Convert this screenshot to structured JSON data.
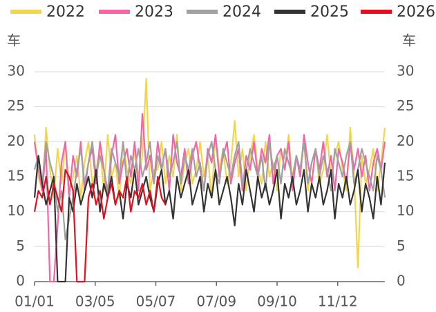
{
  "chart_data": {
    "type": "line",
    "y_label": "车",
    "y2_label": "车",
    "x": [
      0,
      4,
      8,
      12,
      16,
      20,
      24,
      28,
      32,
      36,
      40,
      44,
      48,
      52,
      56,
      60,
      64,
      68,
      72,
      76,
      80,
      84,
      88,
      92,
      96,
      100,
      104,
      108,
      112,
      116,
      120,
      124,
      128,
      132,
      136,
      140,
      144,
      148,
      152,
      156,
      160,
      164,
      168,
      172,
      176,
      180,
      184,
      188,
      192,
      196,
      200,
      204,
      208,
      212,
      216,
      220,
      224,
      228,
      232,
      236,
      240,
      244,
      248,
      252,
      256,
      260,
      264,
      268,
      272,
      276,
      280,
      284,
      288,
      292,
      296,
      300,
      304,
      308,
      312,
      316,
      320,
      324,
      328,
      332,
      336,
      340,
      344,
      348,
      352,
      356,
      360,
      364
    ],
    "xlim": [
      0,
      364
    ],
    "xticks": [
      {
        "value": 0,
        "label": "01/01"
      },
      {
        "value": 63,
        "label": "03/05"
      },
      {
        "value": 126,
        "label": "05/07"
      },
      {
        "value": 189,
        "label": "07/09"
      },
      {
        "value": 252,
        "label": "09/10"
      },
      {
        "value": 315,
        "label": "11/12"
      }
    ],
    "ylim": [
      0,
      30
    ],
    "yticks": [
      0,
      5,
      10,
      15,
      20,
      25,
      30
    ],
    "y2lim": [
      0,
      30
    ],
    "y2ticks": [
      0,
      5,
      10,
      15,
      20,
      25,
      30
    ],
    "grid": true,
    "legend": "top",
    "series": [
      {
        "name": "2022",
        "color": "#f2d54f",
        "values": [
          21,
          15,
          13,
          22,
          16,
          12,
          19,
          14,
          20,
          13,
          15,
          18,
          12,
          17,
          20,
          14,
          16,
          19,
          13,
          21,
          15,
          17,
          12,
          20,
          16,
          14,
          19,
          15,
          18,
          29,
          13,
          16,
          16,
          20,
          14,
          18,
          15,
          21,
          13,
          17,
          19,
          14,
          16,
          20,
          15,
          18,
          12,
          21,
          16,
          19,
          14,
          17,
          23,
          15,
          19,
          13,
          18,
          21,
          16,
          14,
          20,
          15,
          17,
          13,
          19,
          16,
          21,
          14,
          18,
          15,
          20,
          13,
          17,
          19,
          14,
          16,
          21,
          15,
          18,
          20,
          16,
          13,
          22,
          15,
          2,
          18,
          14,
          16,
          19,
          13,
          17,
          22
        ]
      },
      {
        "name": "2023",
        "color": "#f266a8",
        "values": [
          20,
          16,
          13,
          19,
          0,
          0,
          8,
          17,
          20,
          12,
          18,
          15,
          20,
          13,
          17,
          19,
          14,
          20,
          16,
          12,
          18,
          21,
          14,
          17,
          19,
          15,
          20,
          13,
          24,
          16,
          18,
          14,
          20,
          16,
          19,
          13,
          21,
          17,
          15,
          19,
          14,
          18,
          20,
          16,
          13,
          19,
          17,
          21,
          15,
          18,
          20,
          14,
          17,
          19,
          13,
          18,
          16,
          20,
          15,
          19,
          17,
          21,
          14,
          18,
          19,
          16,
          20,
          13,
          18,
          15,
          21,
          17,
          14,
          19,
          16,
          20,
          15,
          18,
          13,
          19,
          17,
          14,
          20,
          16,
          19,
          15,
          18,
          13,
          17,
          19,
          16,
          20
        ]
      },
      {
        "name": "2024",
        "color": "#a0a0a0",
        "values": [
          16,
          18,
          14,
          20,
          17,
          15,
          10,
          13,
          6,
          9,
          12,
          16,
          19,
          14,
          17,
          20,
          15,
          18,
          16,
          13,
          19,
          17,
          15,
          20,
          14,
          18,
          16,
          19,
          15,
          17,
          20,
          14,
          18,
          16,
          19,
          15,
          17,
          20,
          14,
          18,
          16,
          19,
          15,
          17,
          13,
          18,
          20,
          16,
          14,
          19,
          17,
          15,
          18,
          20,
          14,
          16,
          19,
          17,
          15,
          18,
          13,
          20,
          16,
          18,
          14,
          19,
          17,
          15,
          18,
          16,
          20,
          14,
          17,
          19,
          15,
          18,
          16,
          13,
          19,
          17,
          15,
          18,
          20,
          14,
          16,
          19,
          17,
          15,
          13,
          18,
          16,
          12
        ]
      },
      {
        "name": "2025",
        "color": "#333333",
        "values": [
          12,
          18,
          14,
          11,
          13,
          15,
          0,
          0,
          0,
          12,
          10,
          14,
          11,
          13,
          15,
          12,
          16,
          10,
          14,
          12,
          15,
          11,
          13,
          9,
          14,
          12,
          16,
          11,
          13,
          15,
          12,
          10,
          14,
          16,
          11,
          13,
          9,
          15,
          12,
          14,
          16,
          11,
          13,
          15,
          10,
          14,
          12,
          16,
          11,
          13,
          15,
          12,
          8,
          14,
          11,
          16,
          13,
          10,
          15,
          12,
          14,
          11,
          13,
          16,
          9,
          14,
          12,
          15,
          11,
          13,
          16,
          10,
          14,
          12,
          15,
          11,
          13,
          16,
          9,
          14,
          12,
          15,
          11,
          13,
          16,
          10,
          14,
          12,
          9,
          15,
          11,
          17
        ]
      },
      {
        "name": "2026",
        "color": "#e0101e",
        "values": [
          10,
          13,
          12,
          15,
          11,
          14,
          12,
          10,
          16,
          15,
          13,
          0,
          0,
          0,
          12,
          14,
          11,
          13,
          9,
          12,
          14,
          11,
          13,
          12,
          15,
          10,
          13,
          12,
          14,
          11,
          13,
          10,
          15,
          12,
          11,
          null,
          null,
          null,
          null,
          null,
          null,
          null,
          null,
          null,
          null,
          null,
          null,
          null,
          null,
          null,
          null,
          null,
          null,
          null,
          null,
          null,
          null,
          null,
          null,
          null,
          null,
          null,
          null,
          null,
          null,
          null,
          null,
          null,
          null,
          null,
          null,
          null,
          null,
          null,
          null,
          null,
          null,
          null,
          null,
          null,
          null,
          null,
          null,
          null,
          null,
          null,
          null,
          null,
          null,
          null,
          null,
          null
        ]
      }
    ]
  }
}
